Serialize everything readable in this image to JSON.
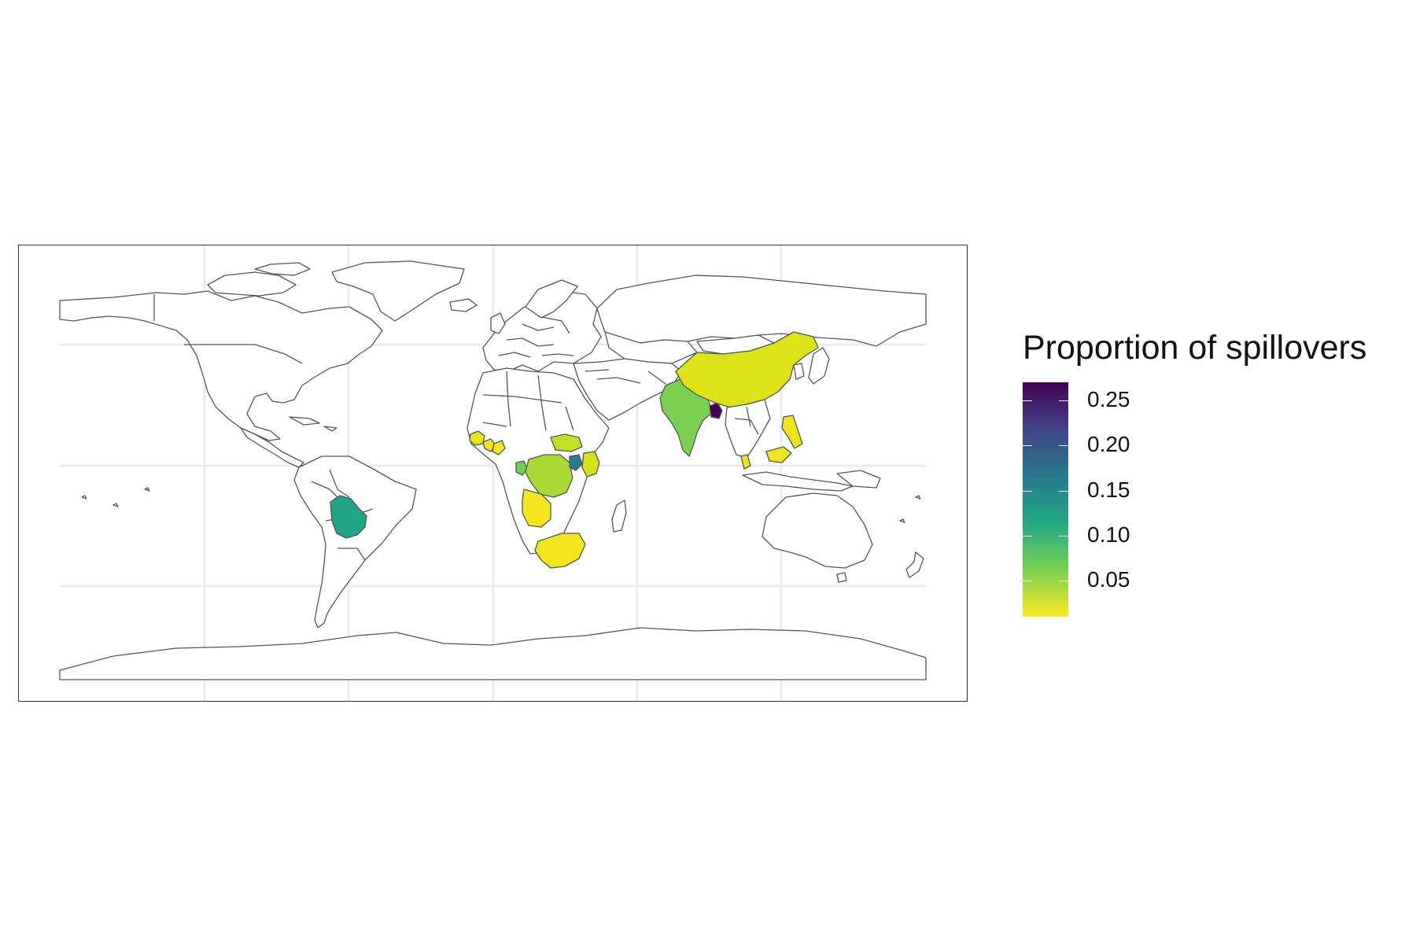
{
  "chart_data": {
    "type": "choropleth",
    "title": "",
    "legend": {
      "title": "Proportion of spillovers",
      "placement": "right",
      "ticks": [
        "0.25",
        "0.20",
        "0.15",
        "0.10",
        "0.05"
      ],
      "tick_values": [
        0.25,
        0.2,
        0.15,
        0.1,
        0.05
      ],
      "range": [
        0.01,
        0.27
      ],
      "palette": "viridis-reversed"
    },
    "grid": true,
    "regions": [
      {
        "name": "Bangladesh",
        "value": 0.27
      },
      {
        "name": "Uganda",
        "value": 0.16
      },
      {
        "name": "Bolivia",
        "value": 0.12
      },
      {
        "name": "India",
        "value": 0.07
      },
      {
        "name": "Gabon",
        "value": 0.07
      },
      {
        "name": "Democratic Republic of the Congo",
        "value": 0.05
      },
      {
        "name": "South Sudan",
        "value": 0.04
      },
      {
        "name": "Kenya",
        "value": 0.03
      },
      {
        "name": "China",
        "value": 0.03
      },
      {
        "name": "Guinea",
        "value": 0.02
      },
      {
        "name": "Sierra Leone",
        "value": 0.02
      },
      {
        "name": "Liberia",
        "value": 0.02
      },
      {
        "name": "Angola",
        "value": 0.02
      },
      {
        "name": "South Africa",
        "value": 0.02
      },
      {
        "name": "Philippines",
        "value": 0.02
      },
      {
        "name": "Malaysia",
        "value": 0.02
      }
    ]
  },
  "colors": {
    "border": "#555555",
    "grid": "#ebebeb",
    "panel_border": "#333333"
  }
}
